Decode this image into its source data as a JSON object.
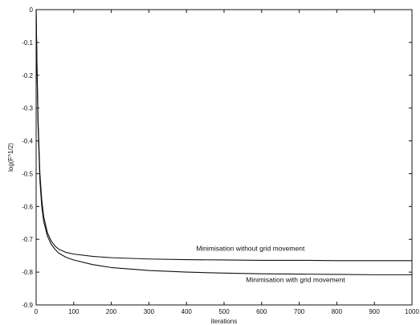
{
  "chart_data": {
    "type": "line",
    "title": "",
    "xlabel": "iterations",
    "ylabel": "log(F^1/2)",
    "xlim": [
      0,
      1000
    ],
    "ylim": [
      -0.9,
      0
    ],
    "xticks": [
      0,
      100,
      200,
      300,
      400,
      500,
      600,
      700,
      800,
      900,
      1000
    ],
    "yticks": [
      0,
      -0.1,
      -0.2,
      -0.3,
      -0.4,
      -0.5,
      -0.6,
      -0.7,
      -0.8,
      -0.9
    ],
    "xtick_labels": [
      "0",
      "100",
      "200",
      "300",
      "400",
      "500",
      "600",
      "700",
      "800",
      "900",
      "1000"
    ],
    "ytick_labels": [
      "0",
      "-0.1",
      "-0.2",
      "-0.3",
      "-0.4",
      "-0.5",
      "-0.6",
      "-0.7",
      "-0.8",
      "-0.9"
    ],
    "grid": false,
    "line_color": "#111111",
    "series": [
      {
        "x": [
          0,
          2,
          5,
          10,
          15,
          20,
          30,
          40,
          50,
          60,
          80,
          100,
          150,
          200,
          300,
          400,
          500,
          600,
          700,
          800,
          900,
          1000
        ],
        "y": [
          0.0,
          -0.15,
          -0.33,
          -0.5,
          -0.58,
          -0.63,
          -0.68,
          -0.705,
          -0.72,
          -0.73,
          -0.74,
          -0.745,
          -0.752,
          -0.756,
          -0.76,
          -0.762,
          -0.763,
          -0.764,
          -0.764,
          -0.765,
          -0.765,
          -0.765
        ]
      },
      {
        "x": [
          0,
          2,
          5,
          10,
          15,
          20,
          30,
          40,
          50,
          60,
          80,
          100,
          150,
          200,
          300,
          400,
          500,
          600,
          700,
          800,
          900,
          1000
        ],
        "y": [
          0.0,
          -0.16,
          -0.35,
          -0.52,
          -0.6,
          -0.645,
          -0.69,
          -0.715,
          -0.73,
          -0.742,
          -0.755,
          -0.763,
          -0.777,
          -0.786,
          -0.795,
          -0.8,
          -0.803,
          -0.805,
          -0.806,
          -0.807,
          -0.808,
          -0.808
        ]
      }
    ],
    "annotations": [
      {
        "text": "Minimisation without grid movement",
        "x": 570,
        "y": -0.735
      },
      {
        "text": "Minimisation with grid movement",
        "x": 690,
        "y": -0.83
      }
    ]
  }
}
